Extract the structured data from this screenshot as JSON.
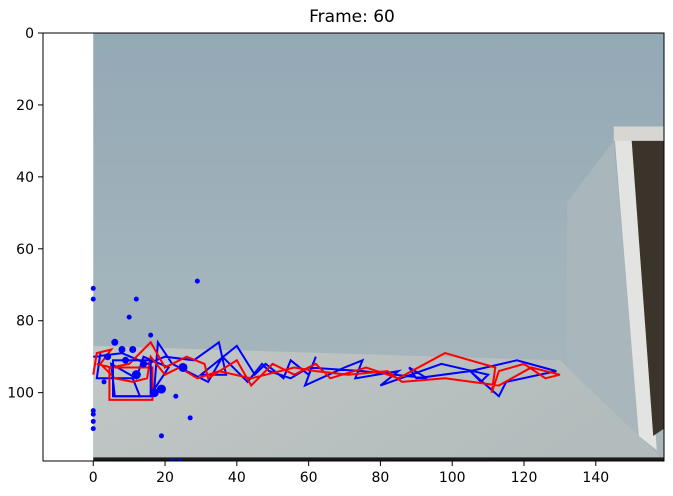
{
  "chart_data": {
    "type": "scatter",
    "title": "Frame: 60",
    "xlabel": "",
    "ylabel": "",
    "xlim": [
      -14,
      159
    ],
    "ylim": [
      119,
      0
    ],
    "y_inverted": true,
    "xticks": [
      0,
      20,
      40,
      60,
      80,
      100,
      120,
      140
    ],
    "yticks": [
      0,
      20,
      40,
      60,
      80,
      100
    ],
    "grid": false,
    "background_image": {
      "extent_x": [
        0,
        159
      ],
      "extent_y": [
        0,
        119
      ],
      "colors": {
        "wall": "#9db0ba",
        "floor": "#b9c1c0",
        "door": "#e3e4e2",
        "shadow": "#3a342a",
        "bottom_bar": "#1c1c1c"
      }
    },
    "series": [
      {
        "color": "#0000ff",
        "kind": "trajectory",
        "points": [
          [
            0,
            90
          ],
          [
            8,
            89
          ],
          [
            15,
            92
          ],
          [
            20,
            90
          ],
          [
            28,
            91
          ],
          [
            35,
            86
          ],
          [
            37,
            95
          ],
          [
            30,
            95
          ],
          [
            40,
            87
          ],
          [
            45,
            95
          ],
          [
            48,
            92
          ],
          [
            53,
            96
          ],
          [
            55,
            91
          ],
          [
            60,
            95
          ],
          [
            62,
            90
          ],
          [
            59,
            98
          ],
          [
            70,
            93
          ],
          [
            75,
            91
          ],
          [
            73,
            96
          ],
          [
            85,
            94
          ],
          [
            80,
            98
          ],
          [
            97,
            92
          ],
          [
            110,
            95
          ],
          [
            108,
            97
          ],
          [
            105,
            94
          ],
          [
            118,
            91
          ],
          [
            129,
            94
          ],
          [
            115,
            97
          ],
          [
            113,
            101
          ],
          [
            105,
            94
          ],
          [
            90,
            96
          ],
          [
            88,
            93
          ],
          [
            93,
            96
          ],
          [
            75,
            94
          ],
          [
            60,
            93
          ],
          [
            55,
            96
          ],
          [
            49,
            94
          ],
          [
            47,
            92
          ],
          [
            43,
            97
          ],
          [
            36,
            90
          ],
          [
            32,
            97
          ],
          [
            22,
            92
          ],
          [
            18,
            86
          ],
          [
            17,
            99
          ],
          [
            21,
            93
          ],
          [
            14,
            90
          ],
          [
            12,
            96
          ],
          [
            5,
            92
          ],
          [
            6,
            101
          ],
          [
            13,
            101
          ],
          [
            11,
            96
          ],
          [
            1,
            96
          ],
          [
            2,
            89
          ]
        ]
      },
      {
        "color": "#ff0000",
        "kind": "trajectory",
        "points": [
          [
            1,
            92
          ],
          [
            5,
            93
          ],
          [
            10,
            92
          ],
          [
            16,
            86
          ],
          [
            20,
            93
          ],
          [
            26,
            90
          ],
          [
            31,
            92
          ],
          [
            32,
            96
          ],
          [
            40,
            91
          ],
          [
            44,
            98
          ],
          [
            50,
            92
          ],
          [
            56,
            95
          ],
          [
            62,
            92
          ],
          [
            66,
            96
          ],
          [
            76,
            93
          ],
          [
            85,
            96
          ],
          [
            98,
            89
          ],
          [
            112,
            93
          ],
          [
            111,
            100
          ],
          [
            113,
            94
          ],
          [
            120,
            92
          ],
          [
            126,
            96
          ],
          [
            130,
            95
          ],
          [
            122,
            93
          ],
          [
            113,
            98
          ],
          [
            98,
            96
          ],
          [
            86,
            97
          ],
          [
            82,
            94
          ],
          [
            71,
            95
          ],
          [
            62,
            94
          ],
          [
            56,
            93
          ],
          [
            44,
            96
          ],
          [
            35,
            94
          ],
          [
            29,
            96
          ],
          [
            24,
            93
          ],
          [
            20,
            95
          ],
          [
            16,
            90
          ],
          [
            15,
            96
          ],
          [
            11,
            97
          ],
          [
            6,
            96
          ],
          [
            2,
            92
          ],
          [
            5,
            88
          ],
          [
            1,
            89
          ],
          [
            0,
            95
          ]
        ]
      },
      {
        "color": "#ff0000",
        "kind": "box",
        "x": [
          4.5,
          16.5
        ],
        "y": [
          93,
          102
        ]
      },
      {
        "color": "#0000ff",
        "kind": "box",
        "x": [
          5.5,
          16
        ],
        "y": [
          91,
          101
        ]
      },
      {
        "color": "#0000ff",
        "kind": "dots",
        "points": [
          [
            0,
            71
          ],
          [
            0,
            74
          ],
          [
            12,
            74
          ],
          [
            10,
            79
          ],
          [
            29,
            69
          ],
          [
            16,
            84
          ],
          [
            6,
            86
          ],
          [
            8,
            88
          ],
          [
            11,
            88
          ],
          [
            3,
            97
          ],
          [
            12,
            95
          ],
          [
            19,
            99
          ],
          [
            25,
            93
          ],
          [
            17,
            100
          ],
          [
            23,
            101
          ],
          [
            0,
            105
          ],
          [
            0,
            106
          ],
          [
            0,
            108
          ],
          [
            0,
            110
          ],
          [
            27,
            107
          ],
          [
            19,
            112
          ],
          [
            22,
            119
          ],
          [
            24,
            119
          ],
          [
            14,
            92
          ],
          [
            4,
            90
          ],
          [
            9,
            91
          ]
        ],
        "sizes": [
          1,
          1,
          1,
          1,
          1,
          1,
          2,
          2,
          2,
          1,
          3,
          3,
          3,
          3,
          1,
          1,
          1,
          1,
          1,
          1,
          1,
          1,
          1,
          2,
          2,
          2
        ]
      }
    ]
  }
}
